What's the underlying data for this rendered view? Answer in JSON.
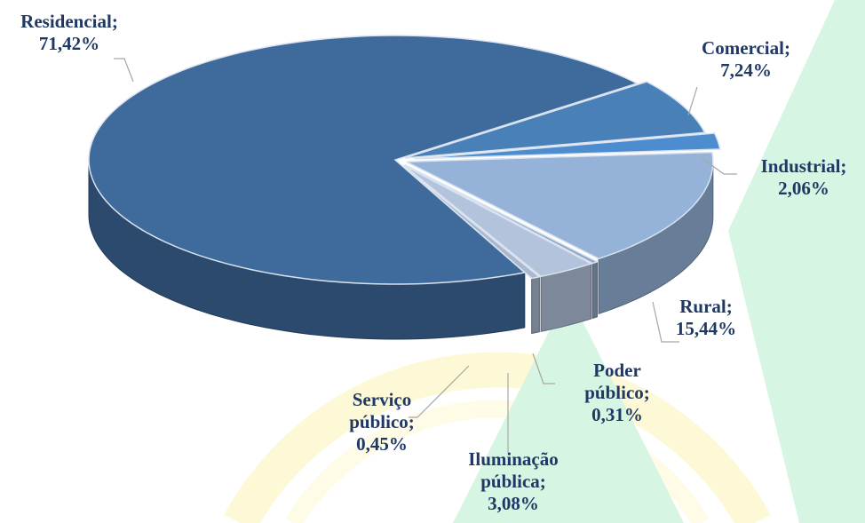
{
  "chart_data": {
    "type": "pie",
    "categories": [
      "Residencial;",
      "Comercial;",
      "Industrial;",
      "Rural;",
      "Poder público;",
      "Iluminação pública;",
      "Serviço público;"
    ],
    "values": [
      71.42,
      7.24,
      2.06,
      15.44,
      0.31,
      3.08,
      0.45
    ],
    "value_labels": [
      "71,42%",
      "7,24%",
      "2,06%",
      "15,44%",
      "0,31%",
      "3,08%",
      "0,45%"
    ],
    "colors": [
      "#3f6a9c",
      "#4a80b8",
      "#4d8ccf",
      "#95b3d9",
      "#8fa6c4",
      "#b3c3dc",
      "#a8b8cf"
    ]
  }
}
